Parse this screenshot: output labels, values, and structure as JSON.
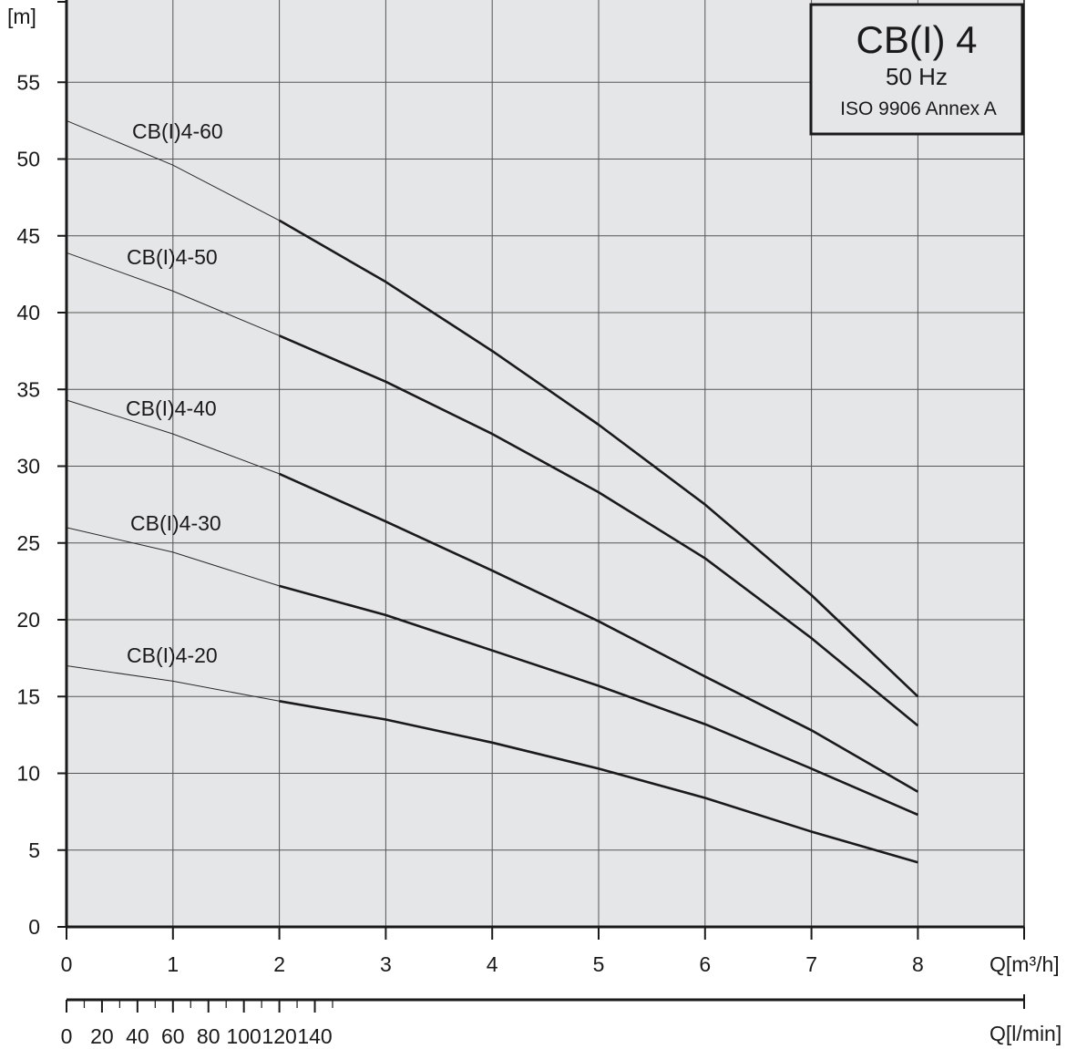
{
  "chart_data": {
    "type": "line",
    "title": "CB(I) 4",
    "subtitle": "50 Hz",
    "standard": "ISO 9906 Annex A",
    "ylabel": "[m]",
    "xlabel": "Q[m³/h]",
    "x2label": "Q[l/min]",
    "xlim": [
      0,
      9
    ],
    "ylim": [
      0,
      60
    ],
    "x_ticks": [
      "0",
      "1",
      "2",
      "3",
      "4",
      "5",
      "6",
      "7",
      "8"
    ],
    "y_ticks": [
      "0",
      "5",
      "10",
      "15",
      "20",
      "25",
      "30",
      "35",
      "40",
      "45",
      "50",
      "55"
    ],
    "x2_ticks": [
      "0",
      "20",
      "40",
      "60",
      "80",
      "100",
      "120",
      "140"
    ],
    "grid": true,
    "series": [
      {
        "name": "CB(I)4-60",
        "x": [
          0,
          1,
          2,
          3,
          4,
          5,
          6,
          7,
          8
        ],
        "y": [
          52.5,
          49.6,
          46.0,
          42.0,
          37.5,
          32.7,
          27.5,
          21.6,
          15.0
        ]
      },
      {
        "name": "CB(I)4-50",
        "x": [
          0,
          1,
          2,
          3,
          4,
          5,
          6,
          7,
          8
        ],
        "y": [
          43.9,
          41.4,
          38.5,
          35.5,
          32.1,
          28.3,
          24.0,
          18.8,
          13.1
        ]
      },
      {
        "name": "CB(I)4-40",
        "x": [
          0,
          1,
          2,
          3,
          4,
          5,
          6,
          7,
          8
        ],
        "y": [
          34.3,
          32.1,
          29.5,
          26.4,
          23.2,
          19.9,
          16.3,
          12.8,
          8.8
        ]
      },
      {
        "name": "CB(I)4-30",
        "x": [
          0,
          1,
          2,
          3,
          4,
          5,
          6,
          7,
          8
        ],
        "y": [
          26.0,
          24.4,
          22.2,
          20.3,
          18.0,
          15.7,
          13.2,
          10.3,
          7.3
        ]
      },
      {
        "name": "CB(I)4-20",
        "x": [
          0,
          1,
          2,
          3,
          4,
          5,
          6,
          7,
          8
        ],
        "y": [
          17.0,
          16.0,
          14.7,
          13.5,
          12.0,
          10.3,
          8.4,
          6.2,
          4.2
        ]
      }
    ]
  }
}
